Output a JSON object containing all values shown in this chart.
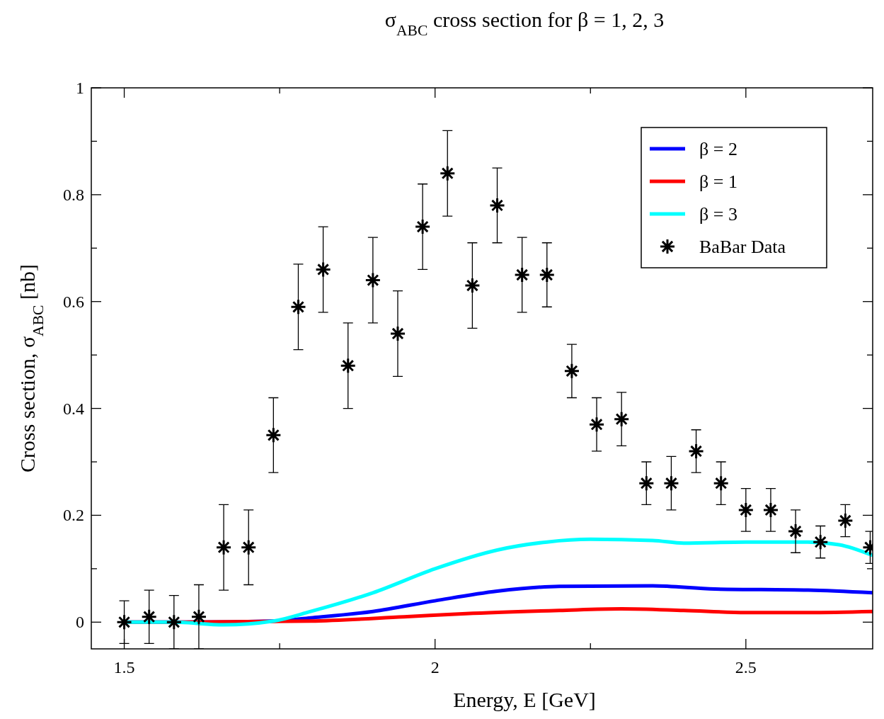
{
  "chart_data": {
    "type": "line",
    "title": "σ$_{ABC}$ cross section for β = 1, 2, 3",
    "xlabel": "Energy, E [GeV]",
    "ylabel": "Cross section, σ$_{ABC}$ [nb]",
    "xlim": [
      1.447,
      2.704
    ],
    "xticks": [
      1.5,
      {
        "value": 1.75,
        "label": null
      },
      2,
      {
        "value": 2.25,
        "label": null
      },
      2.5
    ],
    "ylim": [
      -0.05,
      1
    ],
    "yticks": [
      0,
      {
        "value": 0.1,
        "label": null
      },
      0.2,
      {
        "value": 0.3,
        "label": null
      },
      0.4,
      {
        "value": 0.5,
        "label": null
      },
      0.6,
      {
        "value": 0.7,
        "label": null
      },
      0.8,
      {
        "value": 0.9,
        "label": null
      },
      1
    ],
    "legend": "top right",
    "grid": false,
    "series": [
      {
        "name": "β = 2",
        "color": "#0000ff",
        "marker": "none",
        "x": [
          1.5,
          1.6,
          1.74,
          1.8,
          1.9,
          2.0,
          2.1,
          2.2,
          2.35,
          2.45,
          2.6,
          2.704
        ],
        "values": [
          0,
          0,
          0.002,
          0.008,
          0.02,
          0.04,
          0.058,
          0.067,
          0.068,
          0.062,
          0.06,
          0.055
        ]
      },
      {
        "name": "β = 1",
        "color": "#ff0000",
        "marker": "none",
        "x": [
          1.5,
          1.6,
          1.8,
          1.95,
          2.05,
          2.2,
          2.3,
          2.4,
          2.5,
          2.6,
          2.704
        ],
        "values": [
          0,
          0,
          0.002,
          0.01,
          0.016,
          0.022,
          0.025,
          0.022,
          0.018,
          0.018,
          0.02
        ]
      },
      {
        "name": "β = 3",
        "color": "#00ffff",
        "marker": "none",
        "x": [
          1.5,
          1.58,
          1.66,
          1.74,
          1.8,
          1.9,
          2.0,
          2.1,
          2.18,
          2.25,
          2.35,
          2.4,
          2.5,
          2.6,
          2.65,
          2.704
        ],
        "values": [
          0,
          0,
          -0.005,
          0.002,
          0.02,
          0.055,
          0.1,
          0.135,
          0.15,
          0.155,
          0.153,
          0.148,
          0.15,
          0.15,
          0.145,
          0.125
        ]
      },
      {
        "name": "BaBar Data",
        "color": "#000000",
        "type": "scatter",
        "marker": "cross",
        "x": [
          1.5,
          1.54,
          1.58,
          1.62,
          1.66,
          1.7,
          1.74,
          1.78,
          1.82,
          1.86,
          1.9,
          1.94,
          1.98,
          2.02,
          2.06,
          2.1,
          2.14,
          2.18,
          2.22,
          2.26,
          2.3,
          2.34,
          2.38,
          2.42,
          2.46,
          2.5,
          2.54,
          2.58,
          2.62,
          2.66,
          2.7
        ],
        "values": [
          0,
          0.01,
          0,
          0.01,
          0.14,
          0.14,
          0.35,
          0.59,
          0.66,
          0.48,
          0.64,
          0.54,
          0.74,
          0.84,
          0.63,
          0.78,
          0.65,
          0.65,
          0.47,
          0.37,
          0.38,
          0.26,
          0.26,
          0.32,
          0.26,
          0.21,
          0.21,
          0.17,
          0.15,
          0.19,
          0.14
        ],
        "errors": [
          0.04,
          0.05,
          0.05,
          0.06,
          0.08,
          0.07,
          0.07,
          0.08,
          0.08,
          0.08,
          0.08,
          0.08,
          0.08,
          0.08,
          0.08,
          0.07,
          0.07,
          0.06,
          0.05,
          0.05,
          0.05,
          0.04,
          0.05,
          0.04,
          0.04,
          0.04,
          0.04,
          0.04,
          0.03,
          0.03,
          0.03
        ]
      }
    ]
  }
}
